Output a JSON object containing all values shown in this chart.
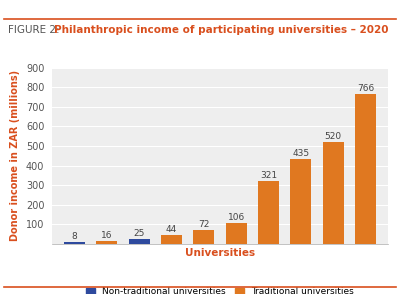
{
  "title_prefix": "FIGURE 2: ",
  "title_main": "Philanthropic income of participating universities – 2020",
  "xlabel": "Universities",
  "ylabel": "Donor income in ZAR (millions)",
  "ylim": [
    0,
    900
  ],
  "yticks": [
    100,
    200,
    300,
    400,
    500,
    600,
    700,
    800,
    900
  ],
  "bar_values": [
    8,
    16,
    25,
    44,
    72,
    106,
    321,
    435,
    520,
    766
  ],
  "bar_colors": [
    "#2e4a9e",
    "#e07820",
    "#2e4a9e",
    "#e07820",
    "#e07820",
    "#e07820",
    "#e07820",
    "#e07820",
    "#e07820",
    "#e07820"
  ],
  "bar_positions": [
    1,
    2,
    3,
    4,
    5,
    6,
    7,
    8,
    9,
    10
  ],
  "bar_width": 0.65,
  "plot_bg_color": "#eeeeee",
  "outer_bg_color": "#ffffff",
  "title_prefix_color": "#555555",
  "title_main_color": "#d94f1e",
  "xlabel_color": "#d94f1e",
  "ylabel_color": "#d94f1e",
  "value_label_fontsize": 6.5,
  "axis_tick_fontsize": 7,
  "axis_label_fontsize": 7.5,
  "title_fontsize": 7.5,
  "legend_labels": [
    "Non-traditional universities",
    "Traditional universities"
  ],
  "legend_colors": [
    "#2e4a9e",
    "#e07820"
  ],
  "accent_line_color": "#d94f1e",
  "grid_color": "#ffffff",
  "value_label_color": "#444444"
}
